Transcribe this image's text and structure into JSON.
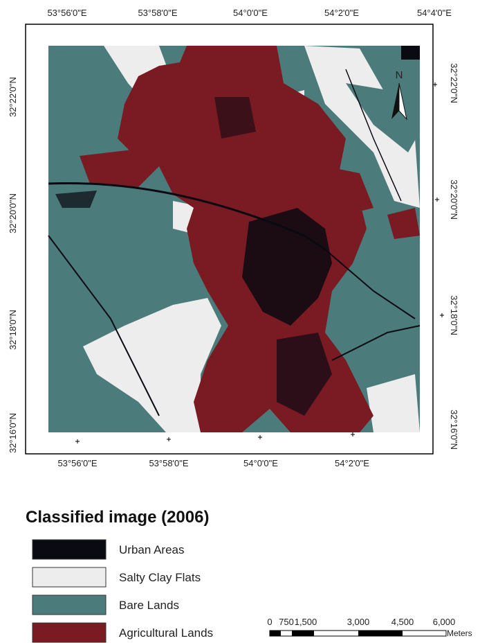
{
  "map": {
    "top_labels": [
      "53°56'0\"E",
      "53°58'0\"E",
      "54°0'0\"E",
      "54°2'0\"E",
      "54°4'0\"E"
    ],
    "bottom_labels": [
      "53°56'0\"E",
      "53°58'0\"E",
      "54°0'0\"E",
      "54°2'0\"E"
    ],
    "left_labels": [
      "32°22'0\"N",
      "32°20'0\"N",
      "32°18'0\"N",
      "32°16'0\"N"
    ],
    "right_labels": [
      "32°22'0\"N",
      "32°20'0\"N",
      "32°18'0\"N",
      "32°16'0\"N"
    ],
    "north": "N"
  },
  "legend": {
    "title": "Classified image (2006)",
    "items": [
      {
        "label": "Urban Areas",
        "color": "#0a0a12"
      },
      {
        "label": "Salty Clay Flats",
        "color": "#ededed"
      },
      {
        "label": "Bare Lands",
        "color": "#4b7b7b"
      },
      {
        "label": "Agricultural Lands",
        "color": "#7a1a22"
      }
    ]
  },
  "scale_bar": {
    "labels": [
      "0",
      "750",
      "1,500",
      "3,000",
      "4,500",
      "6,000"
    ],
    "unit": "Meters"
  }
}
